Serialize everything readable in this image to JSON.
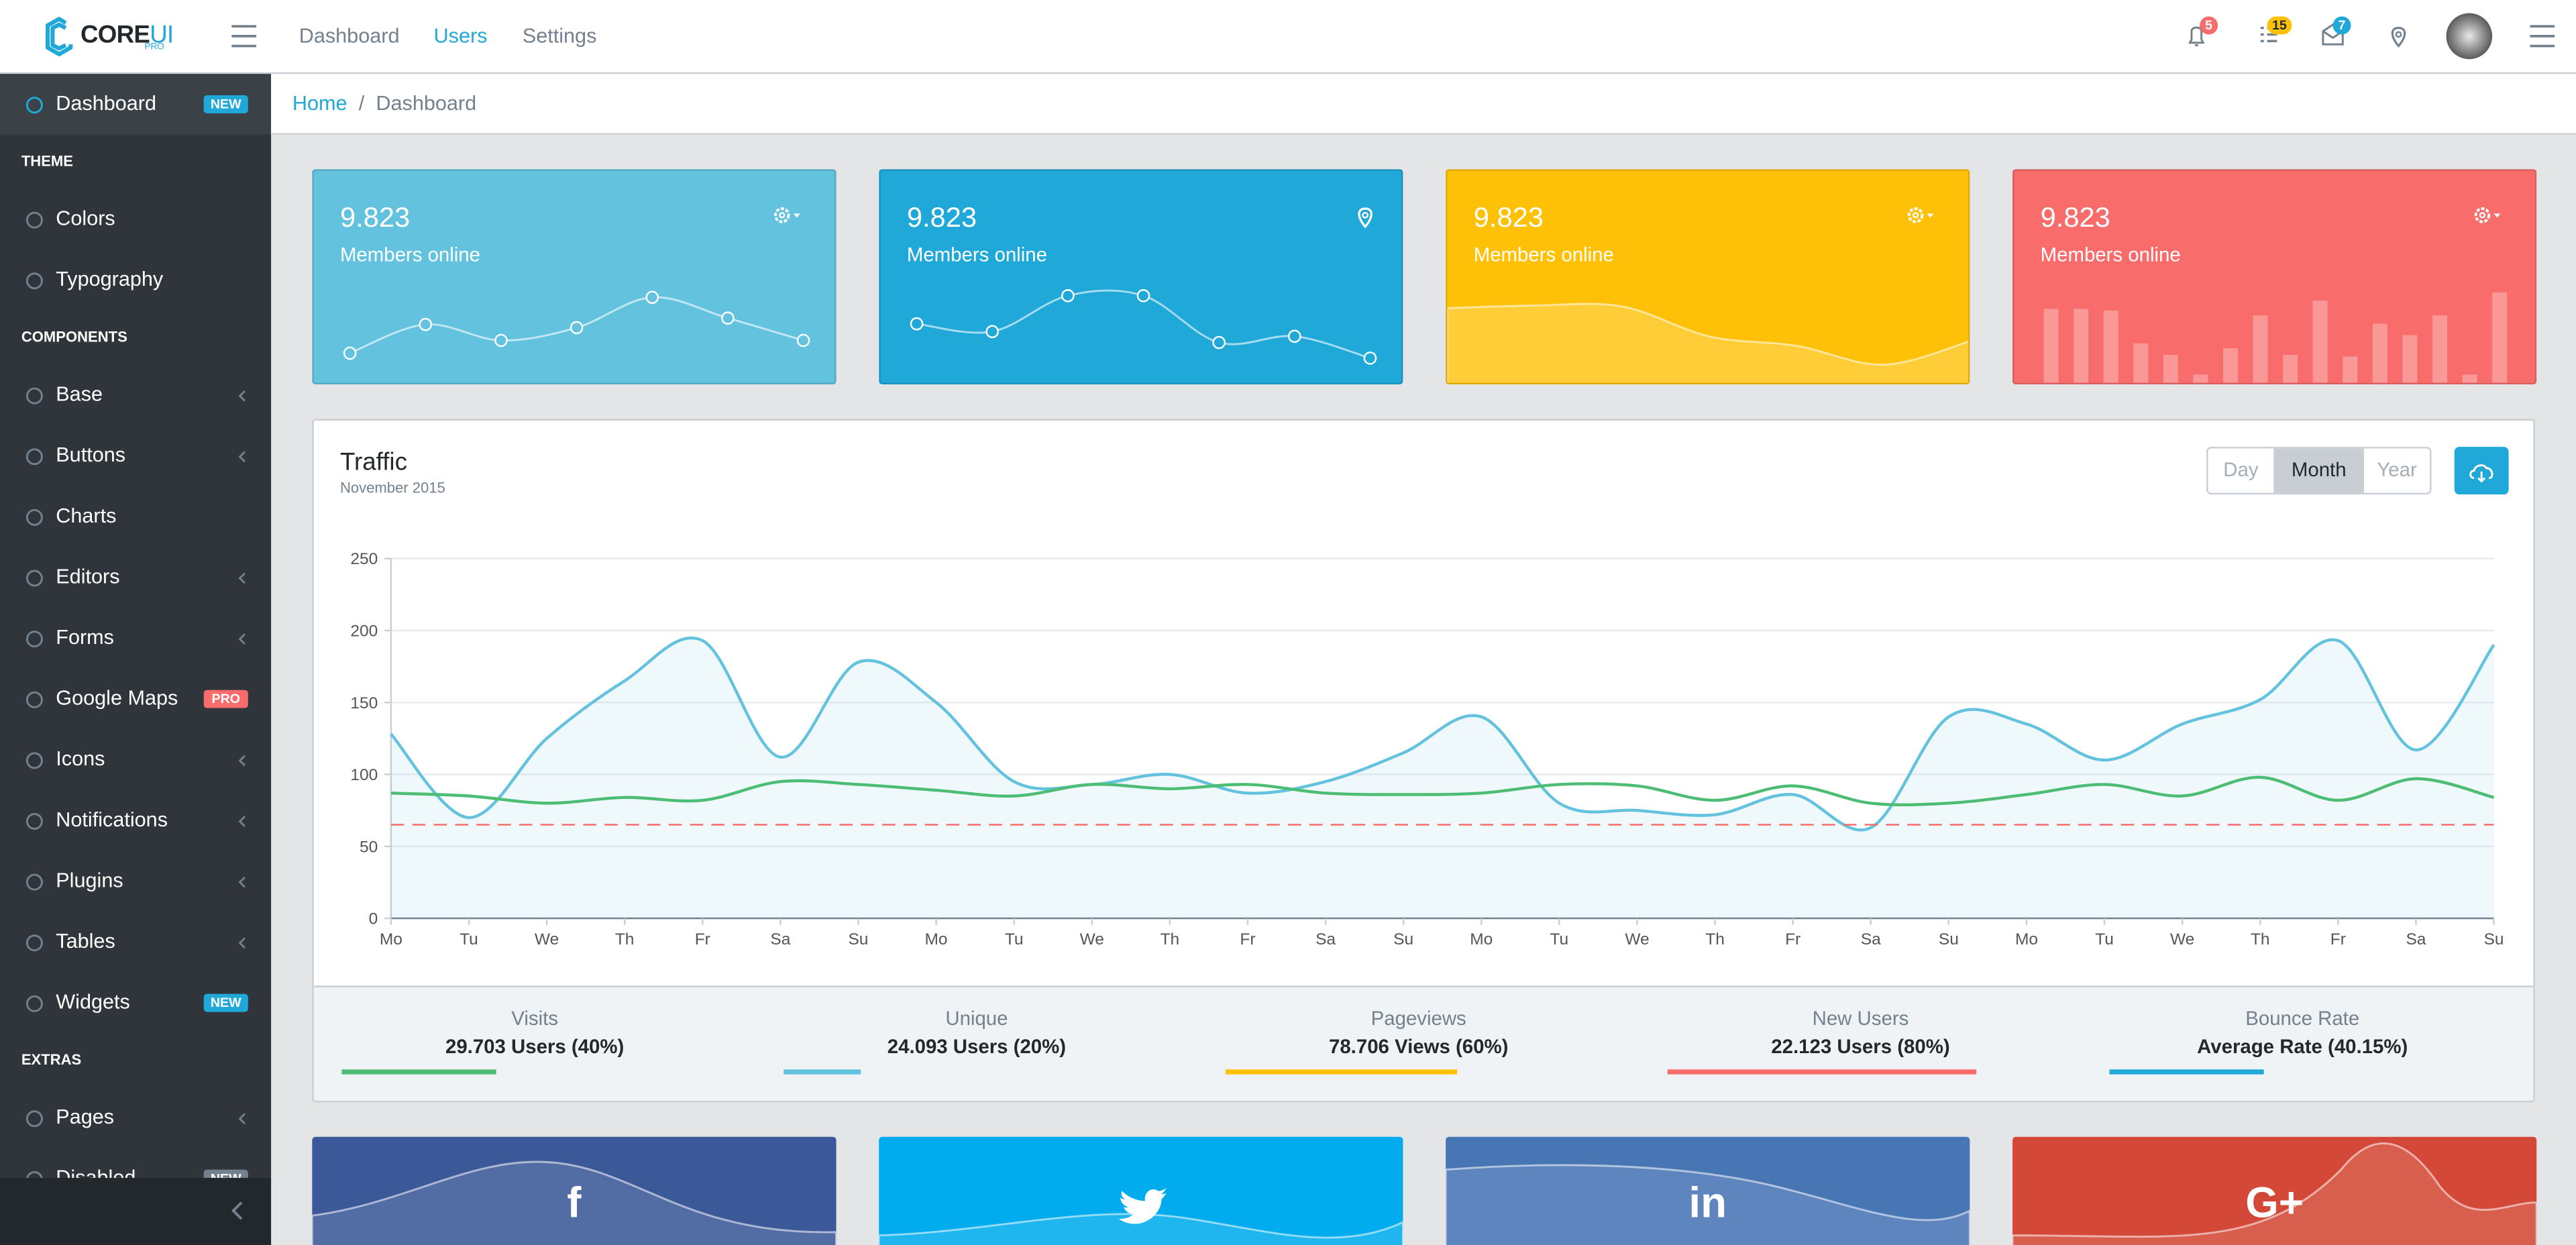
{
  "header": {
    "logo": [
      "CORE",
      "UI"
    ],
    "logo_sub": "PRO",
    "nav": [
      "Dashboard",
      "Users",
      "Settings"
    ],
    "active_nav": 1,
    "badges": [
      5,
      15,
      7
    ]
  },
  "sidebar": {
    "items": [
      {
        "label": "Dashboard",
        "badge": "NEW",
        "badge_color": "#20a8d8",
        "active": true
      },
      {
        "title": "THEME"
      },
      {
        "label": "Colors"
      },
      {
        "label": "Typography"
      },
      {
        "title": "COMPONENTS"
      },
      {
        "label": "Base",
        "chevron": true
      },
      {
        "label": "Buttons",
        "chevron": true
      },
      {
        "label": "Charts"
      },
      {
        "label": "Editors",
        "chevron": true
      },
      {
        "label": "Forms",
        "chevron": true
      },
      {
        "label": "Google Maps",
        "badge": "PRO",
        "badge_color": "#f86c6b"
      },
      {
        "label": "Icons",
        "chevron": true
      },
      {
        "label": "Notifications",
        "chevron": true
      },
      {
        "label": "Plugins",
        "chevron": true
      },
      {
        "label": "Tables",
        "chevron": true
      },
      {
        "label": "Widgets",
        "badge": "NEW",
        "badge_color": "#20a8d8"
      },
      {
        "title": "EXTRAS"
      },
      {
        "label": "Pages",
        "chevron": true
      },
      {
        "label": "Disabled",
        "badge": "NEW",
        "badge_color": "#73818f"
      }
    ]
  },
  "breadcrumb": {
    "items": [
      "Home",
      "Dashboard"
    ],
    "separator": "/"
  },
  "cards": [
    {
      "value": "9.823",
      "label": "Members online",
      "color": "#63c2de",
      "icon": "gear",
      "chart": {
        "type": "line",
        "values": [
          10,
          28,
          18,
          26,
          45,
          32,
          18
        ]
      }
    },
    {
      "value": "9.823",
      "label": "Members online",
      "color": "#20a8d8",
      "icon": "pin",
      "chart": {
        "type": "line",
        "values": [
          40,
          35,
          58,
          58,
          28,
          32,
          18
        ]
      }
    },
    {
      "value": "9.823",
      "label": "Members online",
      "color": "#ffc107",
      "icon": "gear",
      "chart": {
        "type": "area",
        "values": [
          78,
          81,
          80,
          45,
          34,
          12,
          40
        ]
      }
    },
    {
      "value": "9.823",
      "label": "Members online",
      "color": "#f86c6b",
      "icon": "gear",
      "chart": {
        "type": "bar",
        "values": [
          47,
          47,
          46,
          26,
          19,
          7,
          23,
          43,
          19,
          52,
          18,
          38,
          31,
          43,
          7,
          57
        ]
      }
    }
  ],
  "traffic": {
    "title": "Traffic",
    "subtitle": "November 2015",
    "buttons": [
      "Day",
      "Month",
      "Year"
    ],
    "active_button": 1,
    "chart": {
      "type": "line",
      "categories": [
        "Mo",
        "Tu",
        "We",
        "Th",
        "Fr",
        "Sa",
        "Su",
        "Mo",
        "Tu",
        "We",
        "Th",
        "Fr",
        "Sa",
        "Su",
        "Mo",
        "Tu",
        "We",
        "Th",
        "Fr",
        "Sa",
        "Su",
        "Mo",
        "Tu",
        "We",
        "Th",
        "Fr",
        "Sa",
        "Su"
      ],
      "series": [
        {
          "color": "#63c2de",
          "area": true,
          "values": [
            128,
            70,
            125,
            165,
            193,
            112,
            178,
            150,
            95,
            93,
            100,
            87,
            95,
            115,
            140,
            80,
            75,
            72,
            86,
            63,
            140,
            135,
            110,
            135,
            152,
            193,
            117,
            190
          ]
        },
        {
          "color": "#4dbd74",
          "values": [
            87,
            85,
            80,
            84,
            82,
            95,
            93,
            89,
            85,
            93,
            90,
            93,
            87,
            86,
            87,
            93,
            92,
            82,
            92,
            80,
            80,
            86,
            93,
            85,
            98,
            82,
            97,
            84
          ]
        },
        {
          "color": "#f86c6b",
          "dashed": true,
          "values": [
            65,
            65,
            65,
            65,
            65,
            65,
            65,
            65,
            65,
            65,
            65,
            65,
            65,
            65,
            65,
            65,
            65,
            65,
            65,
            65,
            65,
            65,
            65,
            65,
            65,
            65,
            65,
            65
          ]
        }
      ],
      "ylim": [
        0,
        250
      ],
      "yticks": [
        0,
        50,
        100,
        150,
        200,
        250
      ],
      "grid": true
    }
  },
  "stats": [
    {
      "title": "Visits",
      "value": "29.703 Users (40%)",
      "percent": 40,
      "color": "#4dbd74"
    },
    {
      "title": "Unique",
      "value": "24.093 Users (20%)",
      "percent": 20,
      "color": "#63c2de"
    },
    {
      "title": "Pageviews",
      "value": "78.706 Views (60%)",
      "percent": 60,
      "color": "#ffc107"
    },
    {
      "title": "New Users",
      "value": "22.123 Users (80%)",
      "percent": 80,
      "color": "#f86c6b"
    },
    {
      "title": "Bounce Rate",
      "value": "Average Rate (40.15%)",
      "percent": 40.15,
      "color": "#20a8d8"
    }
  ],
  "social": [
    {
      "label": "f",
      "color": "#3b5998"
    },
    {
      "color": "#00aced"
    },
    {
      "label": "in",
      "color": "#4875b4"
    },
    {
      "label": "G+",
      "color": "#d34836"
    }
  ]
}
